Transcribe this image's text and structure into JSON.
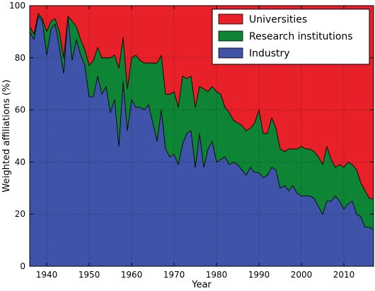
{
  "chart_data": {
    "type": "area",
    "stacked": true,
    "xlabel": "Year",
    "ylabel": "Weighted affiliations (%)",
    "xlim": [
      1936,
      2017
    ],
    "ylim": [
      0,
      100
    ],
    "xticks": [
      1940,
      1950,
      1960,
      1970,
      1980,
      1990,
      2000,
      2010
    ],
    "yticks": [
      0,
      20,
      40,
      60,
      80,
      100
    ],
    "grid": true,
    "legend_position": "top-right",
    "x": [
      1936,
      1937,
      1938,
      1939,
      1940,
      1941,
      1942,
      1943,
      1944,
      1945,
      1946,
      1947,
      1948,
      1949,
      1950,
      1951,
      1952,
      1953,
      1954,
      1955,
      1956,
      1957,
      1958,
      1959,
      1960,
      1961,
      1962,
      1963,
      1964,
      1965,
      1966,
      1967,
      1968,
      1969,
      1970,
      1971,
      1972,
      1973,
      1974,
      1975,
      1976,
      1977,
      1978,
      1979,
      1980,
      1981,
      1982,
      1983,
      1984,
      1985,
      1986,
      1987,
      1988,
      1989,
      1990,
      1991,
      1992,
      1993,
      1994,
      1995,
      1996,
      1997,
      1998,
      1999,
      2000,
      2001,
      2002,
      2003,
      2004,
      2005,
      2006,
      2007,
      2008,
      2009,
      2010,
      2011,
      2012,
      2013,
      2014,
      2015,
      2016,
      2017
    ],
    "series": [
      {
        "name": "Industry",
        "color": "#3f54a8",
        "values": [
          90,
          87,
          96,
          94,
          81,
          91,
          93,
          84,
          74,
          96,
          79,
          87,
          81,
          77,
          65,
          65,
          73,
          66,
          69,
          59,
          64,
          46,
          71,
          52,
          64,
          61,
          61,
          60,
          62,
          55,
          48,
          60,
          45,
          42,
          43,
          39,
          47,
          51,
          52,
          38,
          51,
          38,
          45,
          48,
          40,
          41,
          42,
          39,
          40,
          39,
          37,
          35,
          38,
          36,
          36,
          34,
          35,
          38,
          37,
          30,
          31,
          29,
          31,
          28,
          27,
          27,
          27,
          26,
          23,
          20,
          25,
          25,
          27,
          25,
          22,
          24,
          25,
          20,
          19,
          15,
          15,
          14
        ]
      },
      {
        "name": "Research institutions",
        "color": "#0d8535",
        "values": [
          2,
          2,
          1,
          1,
          9,
          3,
          2,
          6,
          6,
          0,
          15,
          5,
          6,
          6,
          12,
          14,
          11,
          14,
          11,
          21,
          17,
          30,
          17,
          16,
          16,
          20,
          18,
          18,
          16,
          23,
          30,
          21,
          21,
          24,
          24,
          22,
          26,
          21,
          21,
          23,
          18,
          30,
          22,
          21,
          27,
          25,
          19,
          20,
          16,
          16,
          17,
          17,
          15,
          19,
          24,
          17,
          16,
          19,
          16,
          15,
          13,
          16,
          14,
          17,
          19,
          18,
          18,
          18,
          19,
          19,
          21,
          16,
          11,
          14,
          16,
          16,
          14,
          17,
          13,
          14,
          11,
          12
        ]
      },
      {
        "name": "Universities",
        "color": "#e8202a",
        "values": [
          8,
          11,
          3,
          5,
          10,
          6,
          5,
          10,
          20,
          4,
          6,
          8,
          13,
          17,
          23,
          21,
          16,
          20,
          20,
          20,
          19,
          24,
          12,
          32,
          20,
          19,
          21,
          22,
          22,
          22,
          22,
          19,
          34,
          34,
          33,
          39,
          27,
          28,
          27,
          39,
          31,
          32,
          33,
          31,
          33,
          34,
          39,
          41,
          44,
          45,
          46,
          48,
          47,
          45,
          40,
          49,
          49,
          43,
          47,
          55,
          56,
          55,
          55,
          55,
          54,
          55,
          55,
          56,
          58,
          61,
          54,
          59,
          62,
          61,
          62,
          60,
          61,
          63,
          68,
          71,
          74,
          74
        ]
      }
    ]
  }
}
